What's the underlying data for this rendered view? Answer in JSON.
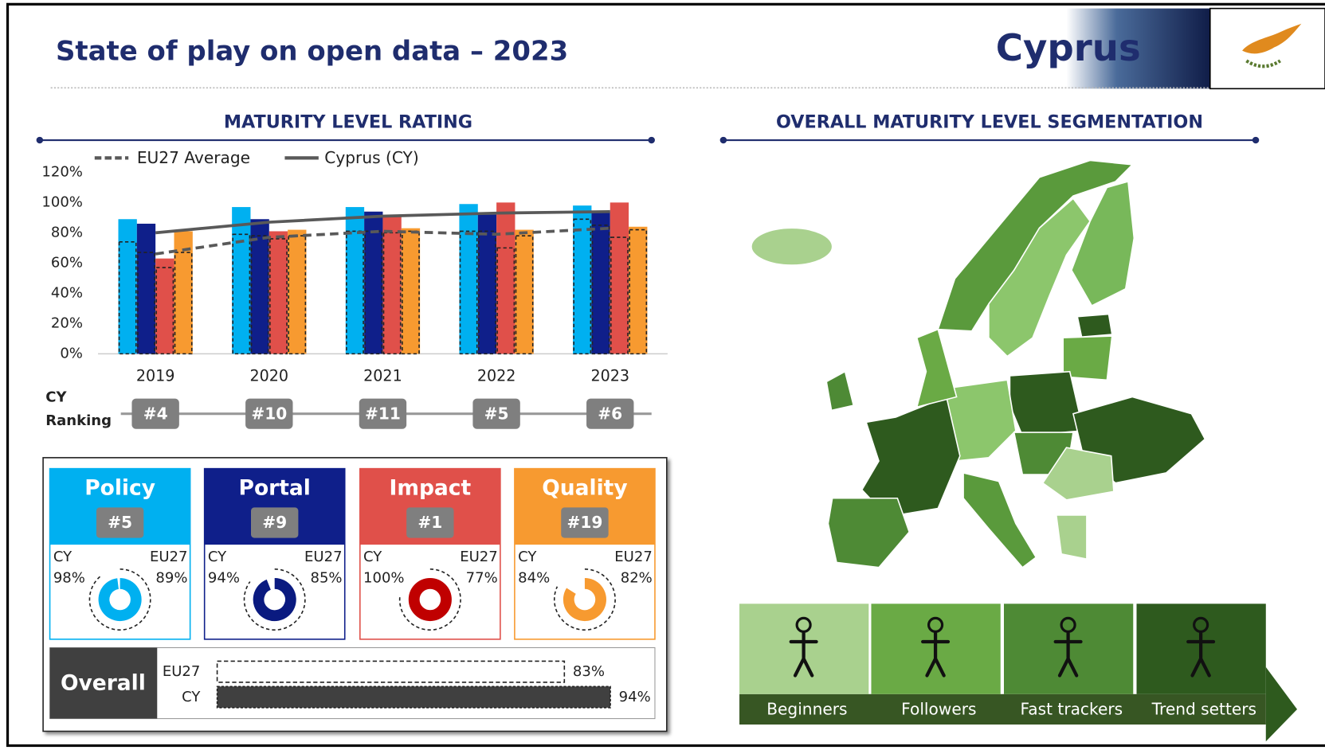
{
  "header": {
    "title": "State of play on open data – 2023",
    "country": "Cyprus"
  },
  "chart_data": {
    "type": "bar",
    "title": "MATURITY LEVEL RATING",
    "categories": [
      "2019",
      "2020",
      "2021",
      "2022",
      "2023"
    ],
    "ylim": [
      0,
      120
    ],
    "yticks": [
      {
        "value": 0,
        "label": "0%"
      },
      {
        "value": 20,
        "label": "20%"
      },
      {
        "value": 40,
        "label": "40%"
      },
      {
        "value": 60,
        "label": "60%"
      },
      {
        "value": 80,
        "label": "80%"
      },
      {
        "value": 100,
        "label": "100%"
      },
      {
        "value": 120,
        "label": "120%"
      }
    ],
    "series": [
      {
        "name": "EU27 Average",
        "color": "#595959",
        "line_style": "dashed",
        "values": [
          66,
          77,
          81,
          79,
          83
        ]
      },
      {
        "name": "Cyprus (CY)",
        "color": "#595959",
        "line_style": "solid",
        "values": [
          80,
          87,
          91,
          93,
          94
        ]
      }
    ],
    "bars": [
      {
        "color": "#00b0f0",
        "values": [
          89,
          97,
          97,
          99,
          98
        ],
        "eu27_values": [
          74,
          79,
          81,
          81,
          89
        ]
      },
      {
        "color": "#0f1f8a",
        "values": [
          86,
          89,
          94,
          92,
          94
        ],
        "eu27_values": [
          67,
          78,
          81,
          81,
          85
        ]
      },
      {
        "color": "#e0504a",
        "values": [
          63,
          81,
          91,
          100,
          100
        ],
        "eu27_values": [
          57,
          76,
          80,
          70,
          77
        ]
      },
      {
        "color": "#f79a30",
        "values": [
          81,
          82,
          83,
          82,
          84
        ],
        "eu27_values": [
          67,
          78,
          81,
          78,
          82
        ]
      }
    ],
    "ranking_label": [
      "CY",
      "Ranking"
    ],
    "ranking": [
      "#4",
      "#10",
      "#11",
      "#5",
      "#6"
    ]
  },
  "dimensions": {
    "labels": [
      "CY",
      "EU27"
    ],
    "items": [
      {
        "name": "Policy",
        "rank": "#5",
        "color": "#00b0f0",
        "ring_color": "#00b0f0",
        "values": [
          98,
          89
        ],
        "value_labels": [
          "98%",
          "89%"
        ]
      },
      {
        "name": "Portal",
        "rank": "#9",
        "color": "#0f1f8a",
        "ring_color": "#0a1a80",
        "values": [
          94,
          85
        ],
        "value_labels": [
          "94%",
          "85%"
        ]
      },
      {
        "name": "Impact",
        "rank": "#1",
        "color": "#e0504a",
        "ring_color": "#c00000",
        "values": [
          100,
          77
        ],
        "value_labels": [
          "100%",
          "77%"
        ]
      },
      {
        "name": "Quality",
        "rank": "#19",
        "color": "#f79a30",
        "ring_color": "#f79a30",
        "values": [
          84,
          82
        ],
        "value_labels": [
          "84%",
          "82%"
        ]
      }
    ]
  },
  "overall": {
    "title": "Overall",
    "labels": [
      "EU27",
      "CY"
    ],
    "values": [
      83,
      94
    ],
    "value_labels": [
      "83%",
      "94%"
    ]
  },
  "segmentation": {
    "title": "OVERALL MATURITY LEVEL SEGMENTATION",
    "legend": [
      {
        "label": "Beginners",
        "color": "#a9d18e"
      },
      {
        "label": "Followers",
        "color": "#6aaa45"
      },
      {
        "label": "Fast trackers",
        "color": "#4e8a35"
      },
      {
        "label": "Trend setters",
        "color": "#2e5a1e"
      }
    ]
  }
}
